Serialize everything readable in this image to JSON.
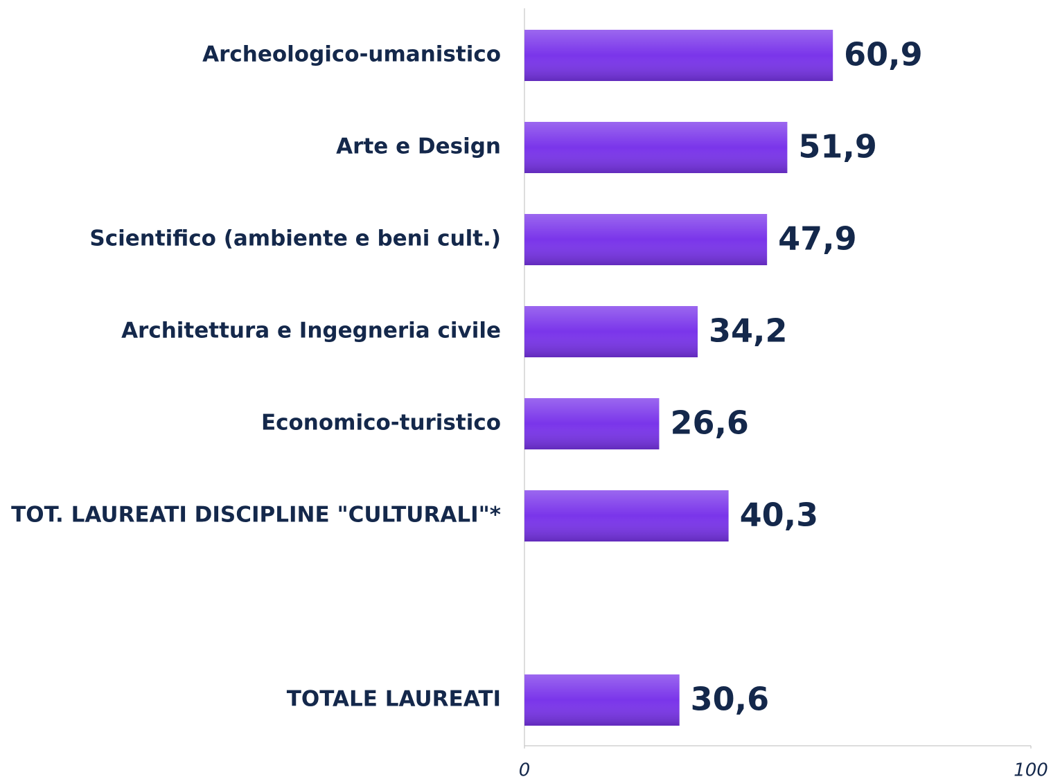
{
  "chart_data": {
    "type": "bar",
    "orientation": "horizontal",
    "categories": [
      "Archeologico-umanistico",
      "Arte e Design",
      "Scientifico (ambiente e beni cult.)",
      "Architettura e Ingegneria civile",
      "Economico-turistico",
      "TOT. LAUREATI DISCIPLINE \"CULTURALI\"*",
      null,
      "TOTALE LAUREATI"
    ],
    "values": [
      60.9,
      51.9,
      47.9,
      34.2,
      26.6,
      40.3,
      null,
      30.6
    ],
    "value_labels": [
      "60,9",
      "51,9",
      "47,9",
      "34,2",
      "26,6",
      "40,3",
      null,
      "30,6"
    ],
    "color": "#7a35ea",
    "xlim": [
      0,
      100
    ],
    "xticks": [
      0,
      100
    ],
    "grid": false
  }
}
